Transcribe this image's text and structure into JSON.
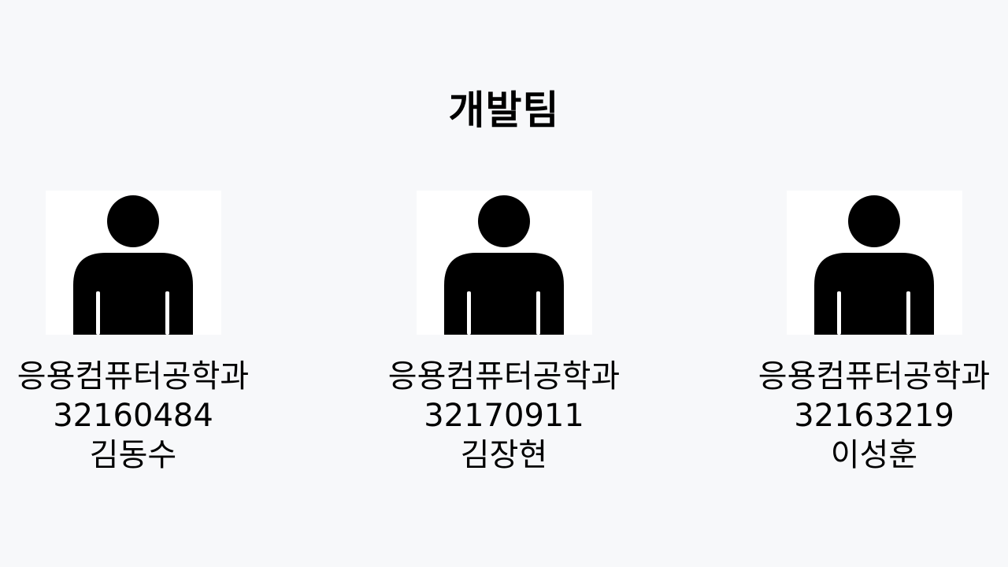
{
  "title": "개발팀",
  "members": [
    {
      "department": "응용컴퓨터공학과",
      "student_id": "32160484",
      "name": "김동수",
      "avatar_icon": "person-icon"
    },
    {
      "department": "응용컴퓨터공학과",
      "student_id": "32170911",
      "name": "김장현",
      "avatar_icon": "person-icon"
    },
    {
      "department": "응용컴퓨터공학과",
      "student_id": "32163219",
      "name": "이성훈",
      "avatar_icon": "person-icon"
    }
  ]
}
